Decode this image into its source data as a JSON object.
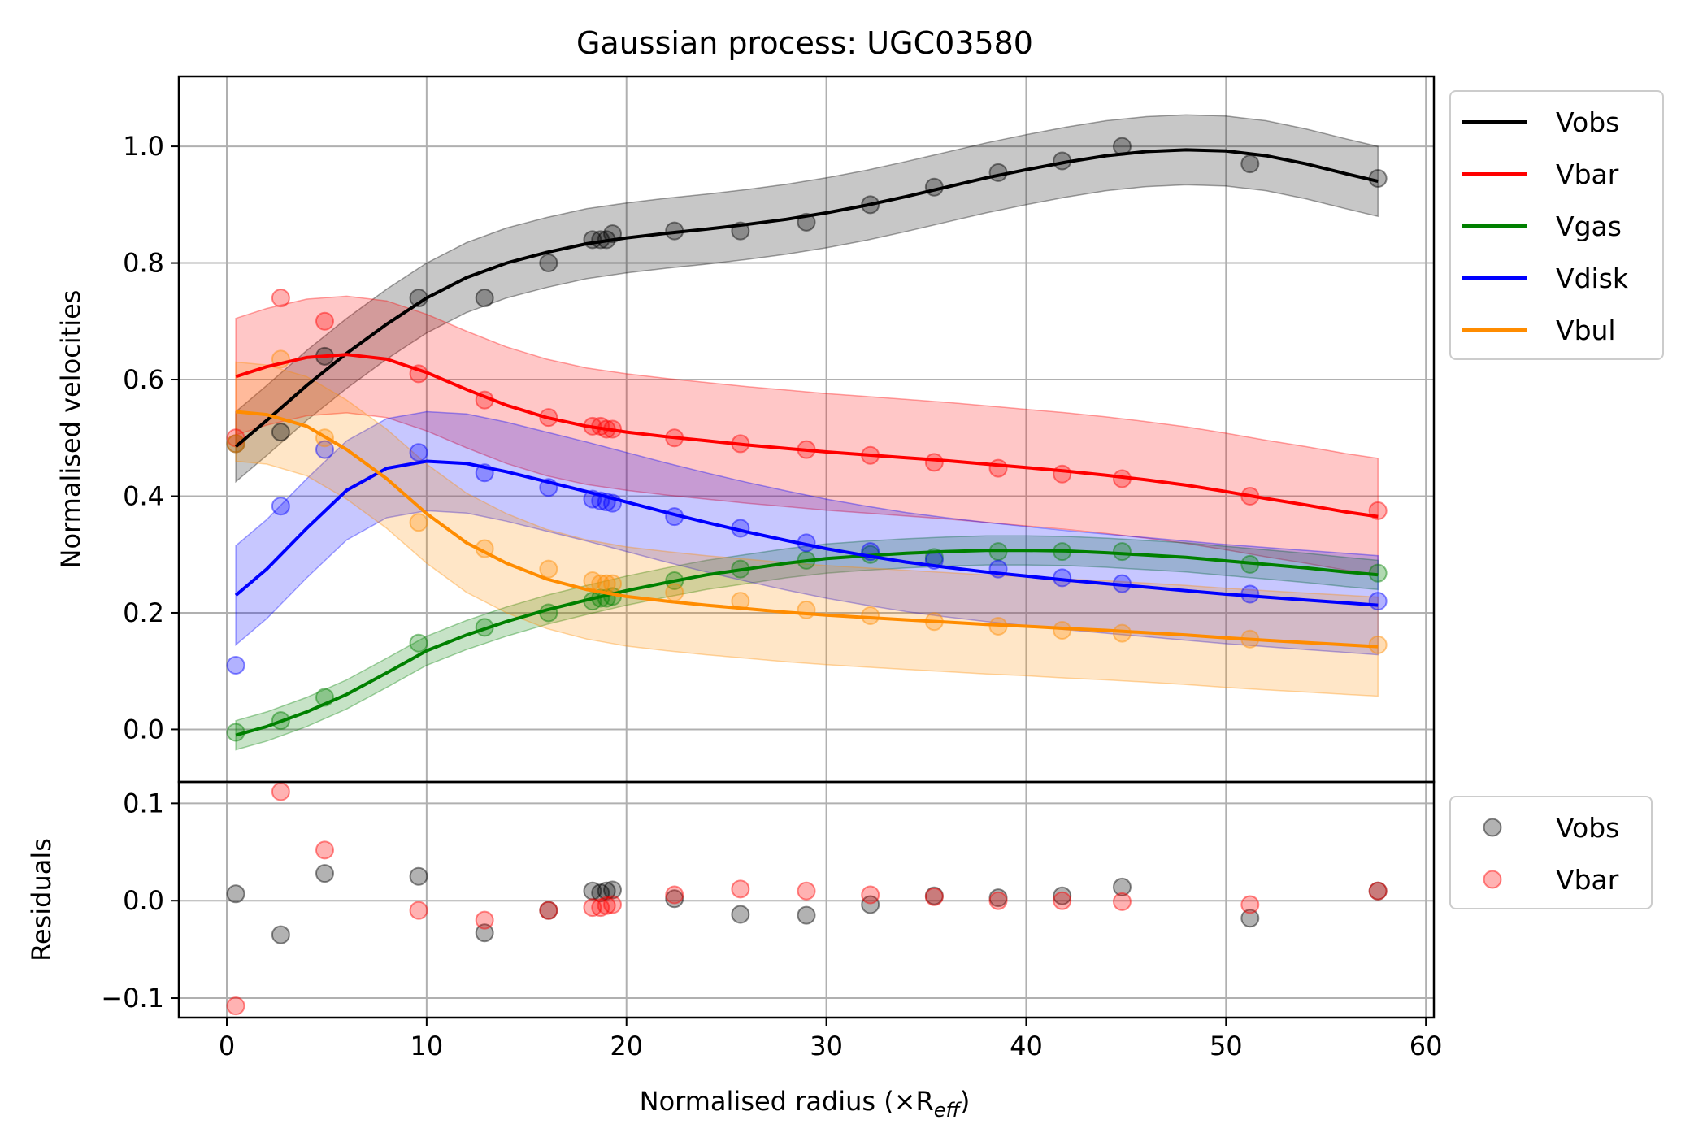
{
  "chart_data": {
    "title": "Gaussian process: UGC03580",
    "xlabel": "Normalised radius (×R",
    "xlabel_sub": "eff",
    "xlabel_close": ")",
    "xlim": [
      -2.4,
      60.4
    ],
    "xticks": [
      0,
      10,
      20,
      30,
      40,
      50,
      60
    ],
    "grid": true,
    "colors": {
      "Vobs": "#000000",
      "Vbar": "#ff0000",
      "Vgas": "#008000",
      "Vdisk": "#0000ff",
      "Vbul": "#ff8c00"
    },
    "main": {
      "type": "line",
      "ylabel": "Normalised velocities",
      "ylim": [
        -0.09,
        1.12
      ],
      "yticks": [
        0.0,
        0.2,
        0.4,
        0.6,
        0.8,
        1.0
      ],
      "ytick_labels": [
        "0.0",
        "0.2",
        "0.4",
        "0.6",
        "0.8",
        "1.0"
      ],
      "legend_position": "outside-upper-right",
      "x_points": [
        0.45,
        2.7,
        4.9,
        9.6,
        12.9,
        16.1,
        18.3,
        18.7,
        19.0,
        19.3,
        22.4,
        25.7,
        29.0,
        32.2,
        35.4,
        38.6,
        41.8,
        44.8,
        51.2,
        57.6
      ],
      "series": [
        {
          "name": "Vobs",
          "points": [
            0.49,
            0.51,
            0.64,
            0.74,
            0.74,
            0.8,
            0.84,
            0.84,
            0.84,
            0.85,
            0.855,
            0.855,
            0.87,
            0.9,
            0.93,
            0.955,
            0.975,
            1.0,
            0.97,
            0.945
          ],
          "curve_x": [
            0.45,
            2,
            4,
            6,
            8,
            10,
            12,
            14,
            16,
            18,
            20,
            22,
            24,
            26,
            28,
            30,
            32,
            34,
            36,
            38,
            40,
            42,
            44,
            46,
            48,
            50,
            52,
            54,
            56,
            57.6
          ],
          "curve": [
            0.485,
            0.53,
            0.59,
            0.645,
            0.695,
            0.74,
            0.775,
            0.8,
            0.818,
            0.833,
            0.843,
            0.851,
            0.858,
            0.866,
            0.875,
            0.886,
            0.899,
            0.914,
            0.93,
            0.946,
            0.96,
            0.973,
            0.984,
            0.991,
            0.994,
            0.992,
            0.984,
            0.97,
            0.953,
            0.94
          ],
          "band_half": 0.06
        },
        {
          "name": "Vbar",
          "points": [
            0.5,
            0.74,
            0.7,
            0.61,
            0.565,
            0.535,
            0.52,
            0.52,
            0.515,
            0.515,
            0.5,
            0.49,
            0.48,
            0.47,
            0.458,
            0.448,
            0.438,
            0.43,
            0.4,
            0.375
          ],
          "curve_x": [
            0.45,
            2,
            4,
            6,
            8,
            10,
            12,
            14,
            16,
            18,
            20,
            22,
            24,
            26,
            28,
            30,
            32,
            34,
            36,
            38,
            40,
            42,
            44,
            46,
            48,
            50,
            52,
            54,
            56,
            57.6
          ],
          "curve": [
            0.605,
            0.622,
            0.638,
            0.643,
            0.635,
            0.612,
            0.583,
            0.556,
            0.535,
            0.52,
            0.51,
            0.502,
            0.495,
            0.488,
            0.482,
            0.476,
            0.471,
            0.466,
            0.461,
            0.455,
            0.449,
            0.443,
            0.436,
            0.428,
            0.419,
            0.408,
            0.396,
            0.385,
            0.373,
            0.365
          ],
          "band_half": 0.1
        },
        {
          "name": "Vgas",
          "points": [
            -0.005,
            0.015,
            0.055,
            0.148,
            0.175,
            0.2,
            0.22,
            0.225,
            0.225,
            0.228,
            0.255,
            0.275,
            0.29,
            0.3,
            0.295,
            0.305,
            0.305,
            0.305,
            0.283,
            0.268
          ],
          "curve_x": [
            0.45,
            2,
            4,
            6,
            8,
            10,
            12,
            14,
            16,
            18,
            20,
            22,
            24,
            26,
            28,
            30,
            32,
            34,
            36,
            38,
            40,
            42,
            44,
            46,
            48,
            50,
            52,
            54,
            56,
            57.6
          ],
          "curve": [
            -0.01,
            0.005,
            0.03,
            0.06,
            0.097,
            0.135,
            0.162,
            0.185,
            0.205,
            0.222,
            0.238,
            0.252,
            0.265,
            0.275,
            0.285,
            0.293,
            0.298,
            0.302,
            0.305,
            0.307,
            0.307,
            0.306,
            0.303,
            0.299,
            0.295,
            0.289,
            0.283,
            0.277,
            0.27,
            0.265
          ],
          "band_half": 0.025
        },
        {
          "name": "Vdisk",
          "points": [
            0.11,
            0.383,
            0.48,
            0.475,
            0.44,
            0.415,
            0.395,
            0.392,
            0.39,
            0.388,
            0.365,
            0.345,
            0.32,
            0.305,
            0.29,
            0.275,
            0.26,
            0.25,
            0.232,
            0.22
          ],
          "curve_x": [
            0.45,
            2,
            4,
            6,
            8,
            10,
            12,
            14,
            16,
            18,
            20,
            22,
            24,
            26,
            28,
            30,
            32,
            34,
            36,
            38,
            40,
            42,
            44,
            46,
            48,
            50,
            52,
            54,
            56,
            57.6
          ],
          "curve": [
            0.23,
            0.275,
            0.345,
            0.41,
            0.448,
            0.46,
            0.456,
            0.442,
            0.425,
            0.408,
            0.39,
            0.372,
            0.355,
            0.339,
            0.324,
            0.31,
            0.298,
            0.287,
            0.278,
            0.27,
            0.263,
            0.256,
            0.25,
            0.244,
            0.238,
            0.232,
            0.227,
            0.222,
            0.217,
            0.213
          ],
          "band_half": 0.085
        },
        {
          "name": "Vbul",
          "points": [
            0.49,
            0.635,
            0.5,
            0.355,
            0.31,
            0.275,
            0.255,
            0.25,
            0.25,
            0.25,
            0.235,
            0.22,
            0.205,
            0.195,
            0.185,
            0.177,
            0.17,
            0.165,
            0.155,
            0.145
          ],
          "curve_x": [
            0.45,
            2,
            4,
            6,
            8,
            10,
            12,
            14,
            16,
            18,
            20,
            22,
            24,
            26,
            28,
            30,
            32,
            34,
            36,
            38,
            40,
            42,
            44,
            46,
            48,
            50,
            52,
            54,
            56,
            57.6
          ],
          "curve": [
            0.545,
            0.54,
            0.52,
            0.48,
            0.43,
            0.37,
            0.32,
            0.285,
            0.258,
            0.24,
            0.228,
            0.22,
            0.213,
            0.207,
            0.201,
            0.196,
            0.192,
            0.188,
            0.184,
            0.18,
            0.177,
            0.173,
            0.17,
            0.166,
            0.162,
            0.157,
            0.153,
            0.149,
            0.145,
            0.142
          ],
          "band_half": 0.085
        }
      ]
    },
    "residuals": {
      "type": "scatter",
      "ylabel": "Residuals",
      "ylim": [
        -0.12,
        0.122
      ],
      "yticks": [
        -0.1,
        0.0,
        0.1
      ],
      "ytick_labels": [
        "−0.1",
        "0.0",
        "0.1"
      ],
      "legend_position": "outside-upper-right",
      "x_points": [
        0.45,
        2.7,
        4.9,
        9.6,
        12.9,
        16.1,
        18.3,
        18.7,
        19.0,
        19.3,
        22.4,
        25.7,
        29.0,
        32.2,
        35.4,
        38.6,
        41.8,
        44.8,
        51.2,
        57.6
      ],
      "series": [
        {
          "name": "Vobs",
          "values": [
            0.007,
            -0.035,
            0.028,
            0.025,
            -0.033,
            -0.01,
            0.01,
            0.008,
            0.01,
            0.011,
            0.002,
            -0.014,
            -0.015,
            -0.004,
            0.005,
            0.003,
            0.005,
            0.014,
            -0.018,
            0.01
          ]
        },
        {
          "name": "Vbar",
          "values": [
            -0.108,
            0.112,
            0.052,
            -0.01,
            -0.02,
            -0.01,
            -0.007,
            -0.007,
            -0.005,
            -0.004,
            0.006,
            0.012,
            0.01,
            0.006,
            0.004,
            0.0,
            0.0,
            -0.001,
            -0.004,
            0.01
          ]
        }
      ]
    }
  }
}
